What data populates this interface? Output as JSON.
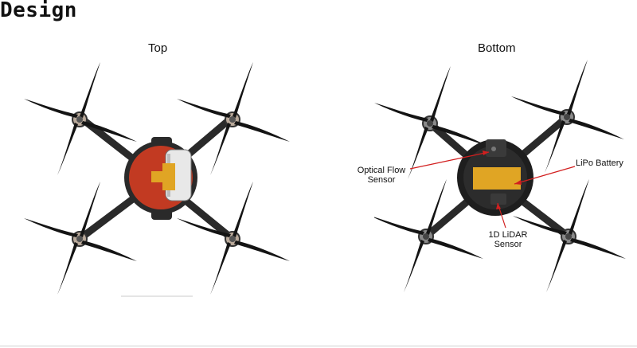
{
  "slide": {
    "title": "Design"
  },
  "figures": {
    "top": {
      "caption": "Top"
    },
    "bottom": {
      "caption": "Bottom",
      "annotations": {
        "optical_flow": {
          "line1": "Optical Flow",
          "line2": "Sensor"
        },
        "lipo": {
          "line1": "LiPo Battery"
        },
        "lidar": {
          "line1": "1D LiDAR",
          "line2": "Sensor"
        }
      }
    }
  },
  "colors": {
    "frame": "#2a2a2a",
    "propeller": "#141414",
    "canopy_red": "#c23a22",
    "battery_orange": "#e0a524",
    "arrow_red": "#d21f1f"
  }
}
